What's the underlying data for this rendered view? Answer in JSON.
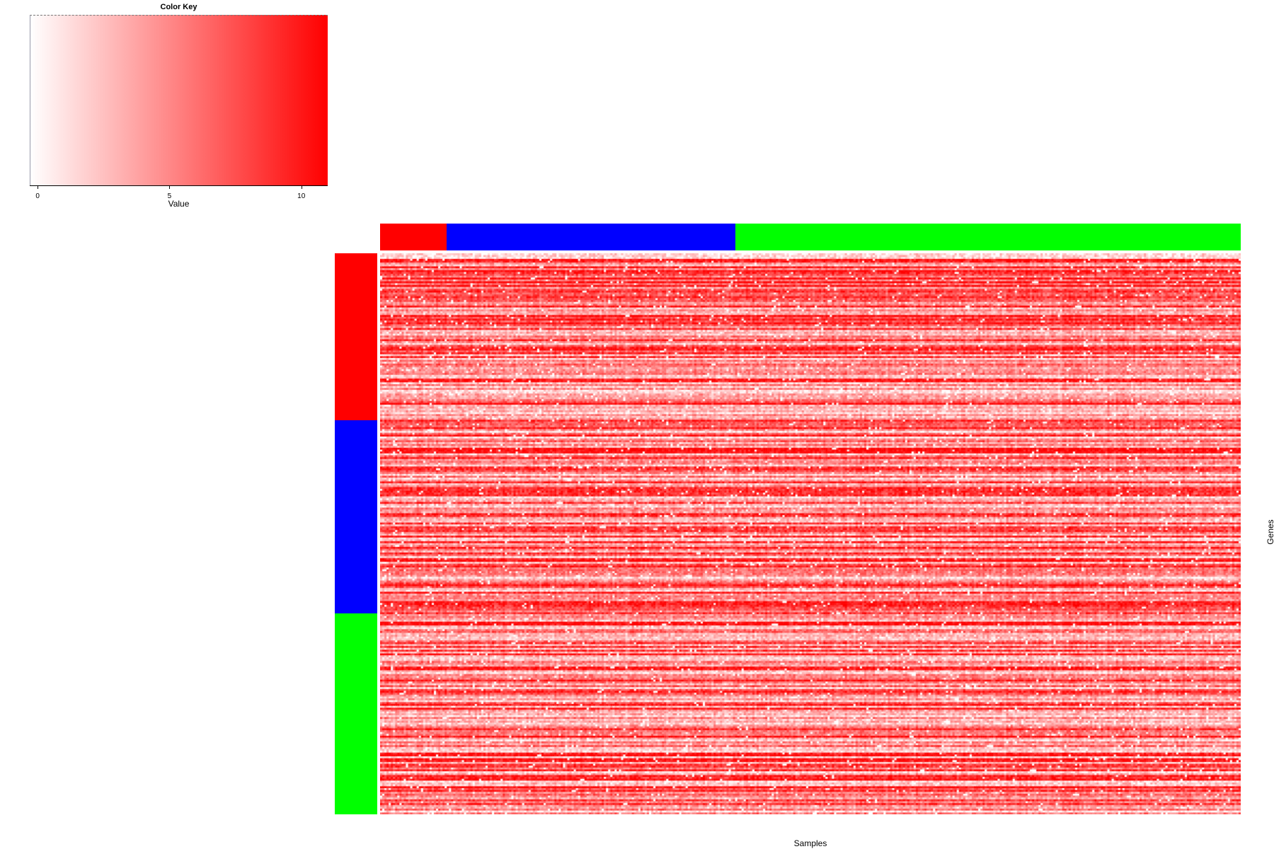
{
  "chart_data": {
    "type": "heatmap",
    "title": "",
    "xlabel": "Samples",
    "ylabel": "Genes",
    "n_rows": 300,
    "n_cols": 400,
    "color_key": {
      "title": "Color Key",
      "xlabel": "Value",
      "range": [
        -0.3,
        11
      ],
      "ticks": [
        0,
        5,
        10
      ],
      "tick_labels": [
        "0",
        "5",
        "10"
      ],
      "low_color": "#ffffff",
      "high_color": "#ff0000"
    },
    "column_groups": [
      {
        "color": "#ff0000",
        "fraction": 0.077
      },
      {
        "color": "#0000ff",
        "fraction": 0.336
      },
      {
        "color": "#00ff00",
        "fraction": 0.587
      }
    ],
    "row_groups": [
      {
        "color": "#ff0000",
        "fraction": 0.298
      },
      {
        "color": "#0000ff",
        "fraction": 0.344
      },
      {
        "color": "#00ff00",
        "fraction": 0.358
      }
    ]
  }
}
